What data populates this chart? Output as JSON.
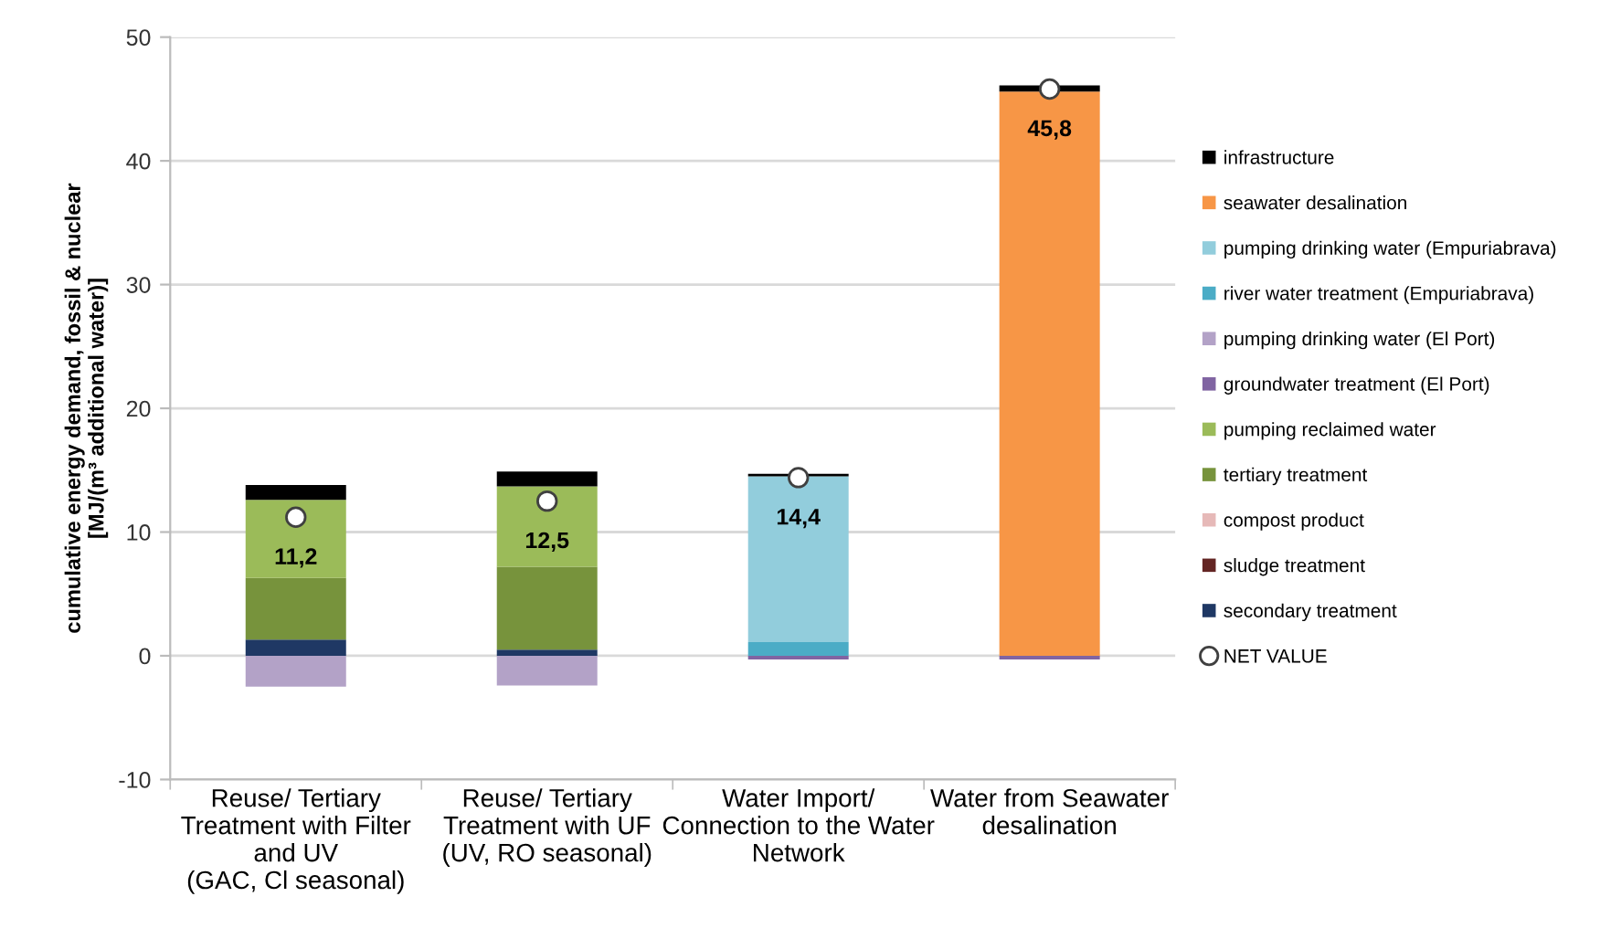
{
  "chart_data": {
    "type": "bar",
    "stacked": true,
    "ylabel": "cumulative energy demand, fossil & nuclear\n[MJ/(m³ additional water)]",
    "categories": [
      "Reuse/ Tertiary\nTreatment with Filter\nand UV\n(GAC, Cl seasonal)",
      "Reuse/ Tertiary\nTreatment with UF\n(UV, RO seasonal)",
      "Water Import/\nConnection to the Water\nNetwork",
      "Water from Seawater\ndesalination"
    ],
    "series": [
      {
        "name": "secondary treatment",
        "color": "#1f3864",
        "values": [
          1.3,
          0.5,
          null,
          null
        ]
      },
      {
        "name": "sludge treatment",
        "color": "#632523",
        "values": [
          null,
          null,
          null,
          null
        ]
      },
      {
        "name": "compost product",
        "color": "#e6b9b8",
        "values": [
          null,
          null,
          null,
          null
        ]
      },
      {
        "name": "tertiary treatment",
        "color": "#77933c",
        "values": [
          5.0,
          6.7,
          null,
          null
        ]
      },
      {
        "name": "pumping reclaimed water",
        "color": "#9bbb59",
        "values": [
          6.3,
          6.5,
          null,
          null
        ]
      },
      {
        "name": "groundwater treatment (El Port)",
        "color": "#8064a2",
        "values": [
          null,
          null,
          -0.3,
          -0.3
        ]
      },
      {
        "name": "pumping drinking water (El Port)",
        "color": "#b3a2c7",
        "values": [
          -2.5,
          -2.4,
          null,
          null
        ]
      },
      {
        "name": "river water treatment (Empuriabrava)",
        "color": "#4bacc6",
        "values": [
          null,
          null,
          1.1,
          null
        ]
      },
      {
        "name": "pumping drinking water (Empuriabrava)",
        "color": "#92cddc",
        "values": [
          null,
          null,
          13.4,
          null
        ]
      },
      {
        "name": "seawater desalination",
        "color": "#f79646",
        "values": [
          null,
          null,
          null,
          45.6
        ]
      },
      {
        "name": "infrastructure",
        "color": "#000000",
        "values": [
          1.2,
          1.2,
          0.2,
          0.5
        ]
      },
      {
        "name": "NET VALUE",
        "type": "scatter",
        "color": "#ffffff",
        "marker": "circle",
        "values": [
          11.2,
          12.5,
          14.4,
          45.8
        ],
        "value_labels": [
          "11,2",
          "12,5",
          "14,4",
          "45,8"
        ]
      }
    ],
    "ylim": [
      -10,
      50
    ],
    "yticks": [
      -10,
      0,
      10,
      20,
      30,
      40,
      50
    ],
    "grid": "y",
    "legend": "right"
  }
}
